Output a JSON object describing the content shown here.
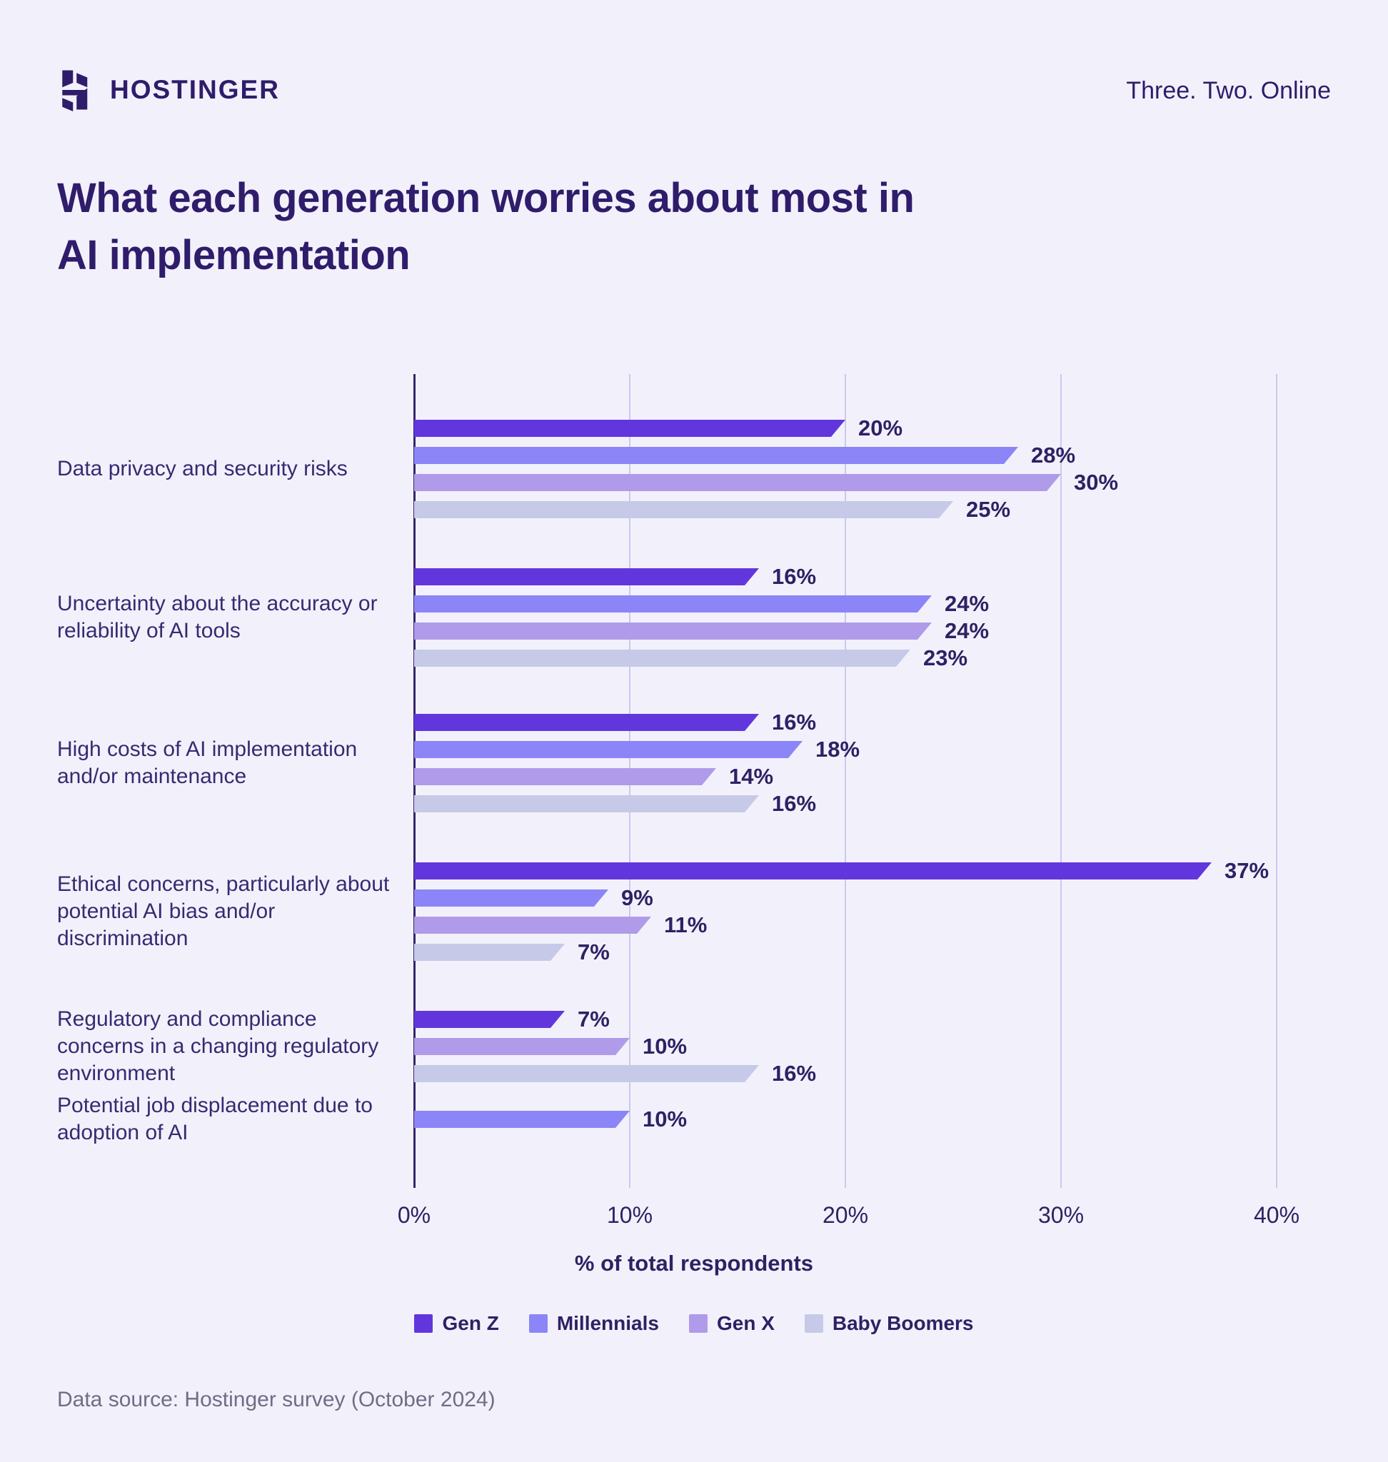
{
  "header": {
    "brand": "HOSTINGER",
    "tagline": "Three. Two. Online"
  },
  "title": {
    "line1": "What each generation worries about most in",
    "line2": "AI implementation"
  },
  "chart_data": {
    "type": "bar",
    "orientation": "horizontal",
    "title": "What each generation worries about most in AI implementation",
    "xlabel": "% of total respondents",
    "x_ticks": [
      "0%",
      "10%",
      "20%",
      "30%",
      "40%"
    ],
    "xlim": [
      0,
      40
    ],
    "grid": "vertical",
    "legend_position": "bottom",
    "value_suffix": "%",
    "categories": [
      "Data privacy and security risks",
      "Uncertainty about the accuracy or\nreliability of AI tools",
      "High costs of AI implementation\nand/or maintenance",
      "Ethical concerns, particularly about\npotential AI bias and/or\ndiscrimination",
      "Regulatory and compliance\nconcerns in a changing regulatory\nenvironment",
      "Potential job displacement due to\nadoption of AI"
    ],
    "series": [
      {
        "name": "Gen Z",
        "color": "#6137DD",
        "values": [
          20,
          16,
          16,
          37,
          7,
          null
        ]
      },
      {
        "name": "Millennials",
        "color": "#8B85F8",
        "values": [
          28,
          24,
          18,
          9,
          null,
          10
        ]
      },
      {
        "name": "Gen X",
        "color": "#AF9BE9",
        "values": [
          30,
          24,
          14,
          11,
          10,
          null
        ]
      },
      {
        "name": "Baby Boomers",
        "color": "#C6CAE8",
        "values": [
          25,
          23,
          16,
          7,
          16,
          null
        ]
      }
    ]
  },
  "footer": {
    "source": "Data source: Hostinger survey (October 2024)"
  },
  "colors": {
    "background": "#F2F1FB",
    "brand_dark": "#2F1C6A",
    "axis_line": "#342668",
    "gridline": "#CBC7F1",
    "value_text": "#2F2164",
    "category_text": "#352B72",
    "source_text": "#6F6D86"
  }
}
